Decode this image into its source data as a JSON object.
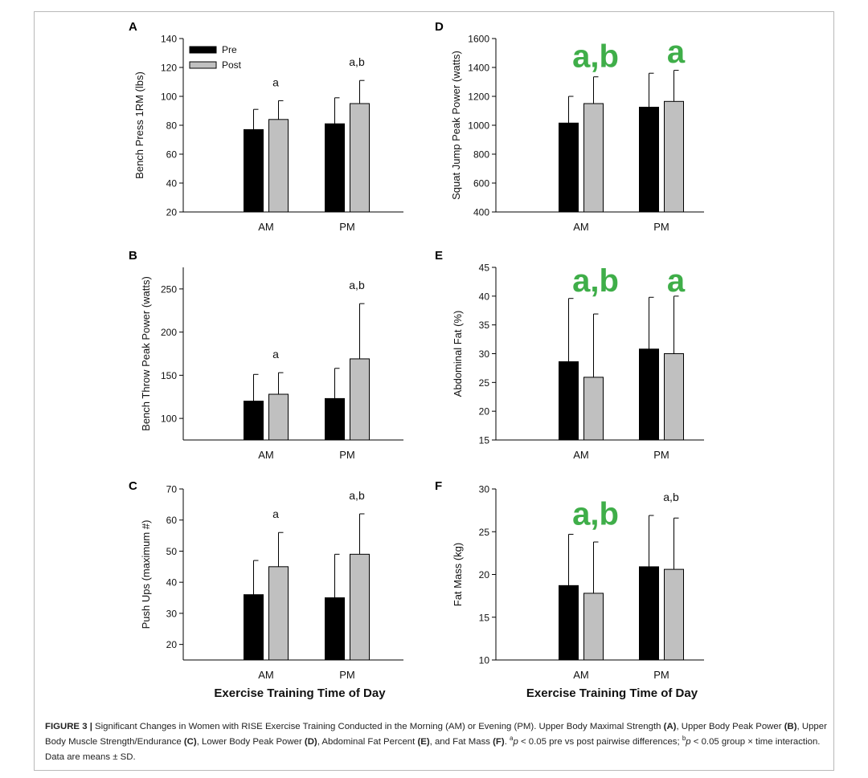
{
  "chart_data": [
    {
      "panel": "A",
      "type": "bar",
      "categories": [
        "AM",
        "PM"
      ],
      "series": [
        {
          "name": "Pre",
          "color": "#000000",
          "values": [
            77,
            81
          ],
          "errors": [
            14,
            18
          ]
        },
        {
          "name": "Post",
          "color": "#c0c0c0",
          "values": [
            84,
            95
          ],
          "errors": [
            13,
            16
          ]
        }
      ],
      "ylabel": "Bench Press 1RM (lbs)",
      "ylim": [
        20,
        140
      ],
      "yticks": [
        20,
        40,
        60,
        80,
        100,
        120,
        140
      ],
      "annotations": [
        {
          "category": "AM",
          "text": "a",
          "size": "small"
        },
        {
          "category": "PM",
          "text": "a,b",
          "size": "small"
        }
      ],
      "legend": {
        "position": "top-left"
      }
    },
    {
      "panel": "B",
      "type": "bar",
      "categories": [
        "AM",
        "PM"
      ],
      "series": [
        {
          "name": "Pre",
          "color": "#000000",
          "values": [
            120,
            123
          ],
          "errors": [
            31,
            35
          ]
        },
        {
          "name": "Post",
          "color": "#c0c0c0",
          "values": [
            128,
            169
          ],
          "errors": [
            25,
            64
          ]
        }
      ],
      "ylabel": "Bench Throw Peak Power (watts)",
      "ylim": [
        75,
        275
      ],
      "yticks": [
        100,
        150,
        200,
        250
      ],
      "annotations": [
        {
          "category": "AM",
          "text": "a",
          "size": "small"
        },
        {
          "category": "PM",
          "text": "a,b",
          "size": "small"
        }
      ]
    },
    {
      "panel": "C",
      "type": "bar",
      "categories": [
        "AM",
        "PM"
      ],
      "series": [
        {
          "name": "Pre",
          "color": "#000000",
          "values": [
            36,
            35
          ],
          "errors": [
            11,
            14
          ]
        },
        {
          "name": "Post",
          "color": "#c0c0c0",
          "values": [
            45,
            49
          ],
          "errors": [
            11,
            13
          ]
        }
      ],
      "ylabel": "Push Ups (maximum #)",
      "xlabel": "Exercise Training Time of Day",
      "ylim": [
        15,
        70
      ],
      "yticks": [
        20,
        30,
        40,
        50,
        60,
        70
      ],
      "annotations": [
        {
          "category": "AM",
          "text": "a",
          "size": "small"
        },
        {
          "category": "PM",
          "text": "a,b",
          "size": "small"
        }
      ]
    },
    {
      "panel": "D",
      "type": "bar",
      "categories": [
        "AM",
        "PM"
      ],
      "series": [
        {
          "name": "Pre",
          "color": "#000000",
          "values": [
            1015,
            1125
          ],
          "errors": [
            185,
            235
          ]
        },
        {
          "name": "Post",
          "color": "#c0c0c0",
          "values": [
            1150,
            1165
          ],
          "errors": [
            185,
            215
          ]
        }
      ],
      "ylabel": "Squat Jump Peak Power (watts)",
      "ylim": [
        400,
        1600
      ],
      "yticks": [
        400,
        600,
        800,
        1000,
        1200,
        1400,
        1600
      ],
      "annotations": [
        {
          "category": "AM",
          "text": "a,b",
          "size": "large",
          "color": "#3fae49"
        },
        {
          "category": "PM",
          "text": "a",
          "size": "large",
          "color": "#3fae49"
        }
      ]
    },
    {
      "panel": "E",
      "type": "bar",
      "categories": [
        "AM",
        "PM"
      ],
      "series": [
        {
          "name": "Pre",
          "color": "#000000",
          "values": [
            28.6,
            30.8
          ],
          "errors": [
            11,
            9
          ]
        },
        {
          "name": "Post",
          "color": "#c0c0c0",
          "values": [
            25.9,
            30.0
          ],
          "errors": [
            11,
            10
          ]
        }
      ],
      "ylabel": "Abdominal Fat (%)",
      "ylim": [
        15,
        45
      ],
      "yticks": [
        15,
        20,
        25,
        30,
        35,
        40,
        45
      ],
      "annotations": [
        {
          "category": "AM",
          "text": "a,b",
          "size": "large",
          "color": "#3fae49"
        },
        {
          "category": "PM",
          "text": "a",
          "size": "large",
          "color": "#3fae49"
        }
      ]
    },
    {
      "panel": "F",
      "type": "bar",
      "categories": [
        "AM",
        "PM"
      ],
      "series": [
        {
          "name": "Pre",
          "color": "#000000",
          "values": [
            18.7,
            20.9
          ],
          "errors": [
            6,
            6
          ]
        },
        {
          "name": "Post",
          "color": "#c0c0c0",
          "values": [
            17.8,
            20.6
          ],
          "errors": [
            6,
            6
          ]
        }
      ],
      "ylabel": "Fat Mass (kg)",
      "xlabel": "Exercise Training Time of Day",
      "ylim": [
        10,
        30
      ],
      "yticks": [
        10,
        15,
        20,
        25,
        30
      ],
      "annotations": [
        {
          "category": "AM",
          "text": "a,b",
          "size": "large",
          "color": "#3fae49"
        },
        {
          "category": "PM",
          "text": "a,b",
          "size": "small"
        }
      ]
    }
  ],
  "caption": {
    "label": "FIGURE 3 |",
    "line1": " Significant Changes in Women with RISE Exercise Training Conducted in the Morning (AM) or Evening (PM). Upper Body Maximal Strength ",
    "A": "(A)",
    "t1": ", Upper Body Peak Power ",
    "B": "(B)",
    "t2": ", Upper Body Muscle Strength/Endurance ",
    "C": "(C)",
    "t3": ", Lower Body Peak Power ",
    "D": "(D)",
    "t4": ", Abdominal Fat Percent ",
    "E": "(E)",
    "t5": ", and Fat Mass ",
    "F": "(F)",
    "t6": ". ",
    "sup_a": "a",
    "p1": "p",
    "t7": " < 0.05 pre vs post pairwise differences; ",
    "sup_b": "b",
    "p2": "p",
    "t8": " < 0.05 group × time interaction. Data are means ± SD."
  }
}
